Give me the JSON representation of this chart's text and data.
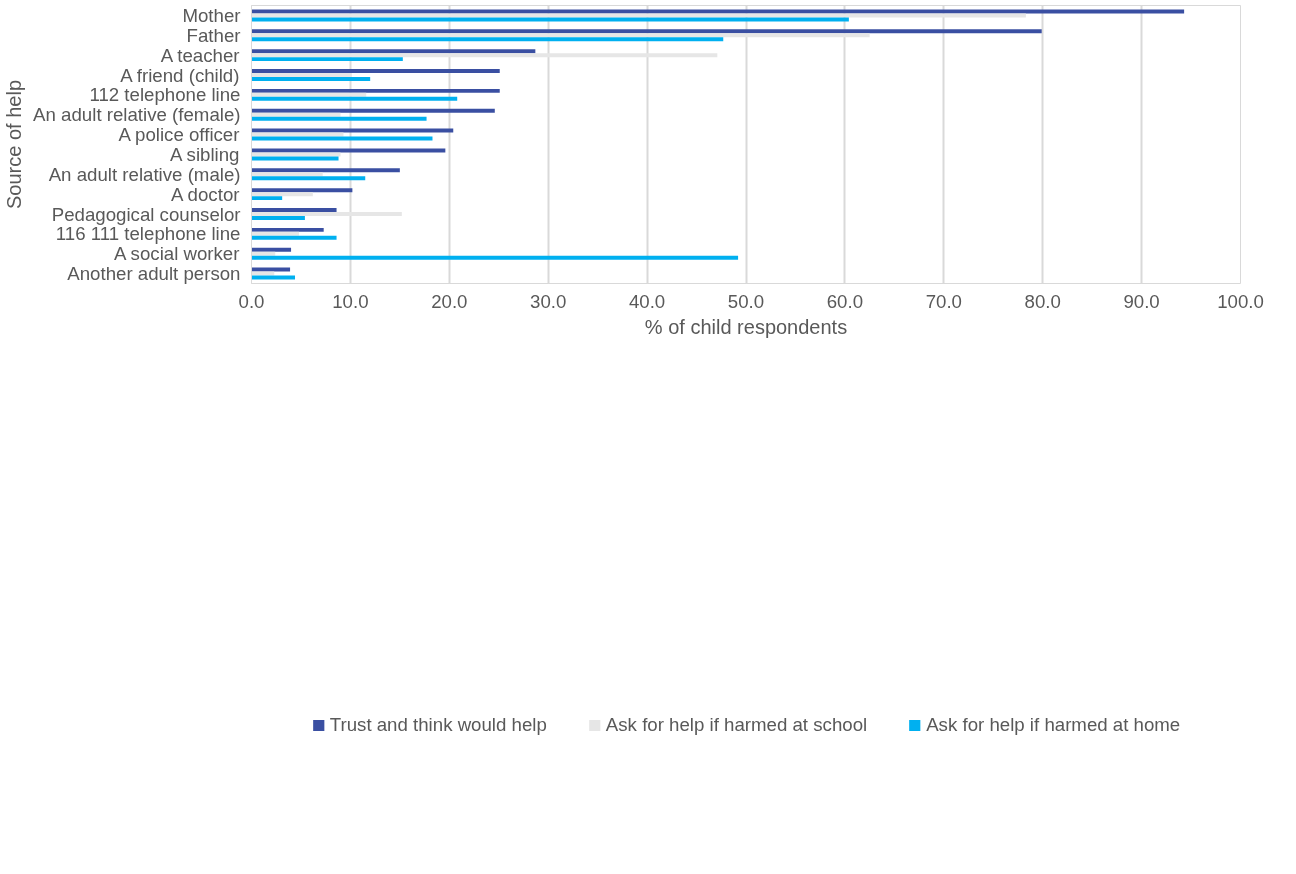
{
  "chart_data": {
    "type": "bar",
    "orientation": "horizontal",
    "xlabel": "% of child respondents",
    "ylabel": "Source of help",
    "categories": [
      "Mother",
      "Father",
      "A teacher",
      "A friend (child)",
      "112 telephone line",
      "An adult relative (female)",
      "A police officer",
      "A sibling",
      "An adult relative (male)",
      "A doctor",
      "Pedagogical counselor",
      "116 111 telephone line",
      "A social worker",
      "Another adult person"
    ],
    "series": [
      {
        "name": "Trust and think would help",
        "color": "#3a4fa2",
        "values": [
          94.3,
          79.9,
          28.7,
          25.1,
          25.1,
          24.6,
          20.4,
          19.6,
          15.0,
          10.2,
          8.6,
          7.3,
          4.0,
          3.9
        ]
      },
      {
        "name": "Ask for help if harmed at school",
        "color": "#e6e6e6",
        "values": [
          78.3,
          62.5,
          47.1,
          10.1,
          11.6,
          9.0,
          9.3,
          9.0,
          7.2,
          6.2,
          15.2,
          4.8,
          2.4,
          2.3
        ]
      },
      {
        "name": "Ask for help if harmed at home",
        "color": "#00b0f0",
        "values": [
          60.4,
          47.7,
          15.3,
          12.0,
          20.8,
          17.7,
          18.3,
          8.8,
          11.5,
          3.1,
          5.4,
          8.6,
          49.2,
          4.4
        ]
      }
    ],
    "xlim": [
      0,
      100
    ],
    "xticks": [
      {
        "value": 0,
        "label": "0.0"
      },
      {
        "value": 10,
        "label": "10.0"
      },
      {
        "value": 20,
        "label": "20.0"
      },
      {
        "value": 30,
        "label": "30.0"
      },
      {
        "value": 40,
        "label": "40.0"
      },
      {
        "value": 50,
        "label": "50.0"
      },
      {
        "value": 60,
        "label": "60.0"
      },
      {
        "value": 70,
        "label": "70.0"
      },
      {
        "value": 80,
        "label": "80.0"
      },
      {
        "value": 90,
        "label": "90.0"
      },
      {
        "value": 100,
        "label": "100.0"
      }
    ],
    "grid": "x",
    "legend": "bottom"
  }
}
